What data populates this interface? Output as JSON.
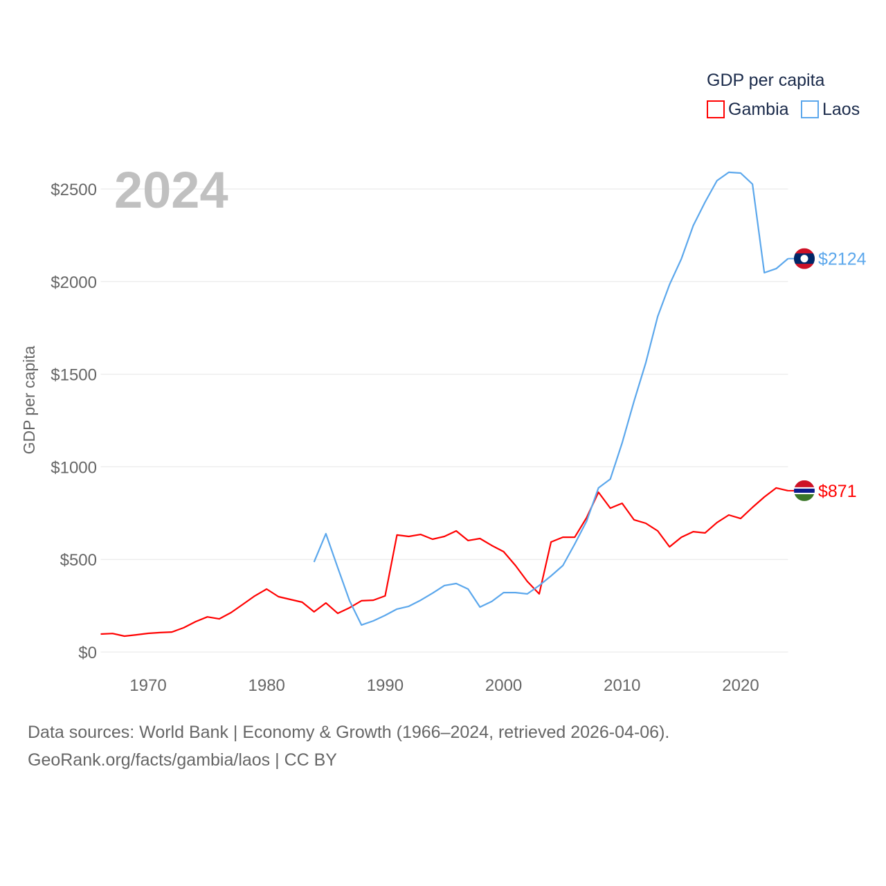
{
  "chart_data": {
    "type": "line",
    "title": "2024",
    "ylabel": "GDP per capita",
    "xlabel": "",
    "xlim": [
      1966,
      2024
    ],
    "ylim": [
      0,
      2600
    ],
    "x_ticks": [
      1970,
      1980,
      1990,
      2000,
      2010,
      2020
    ],
    "y_ticks": [
      0,
      500,
      1000,
      1500,
      2000,
      2500
    ],
    "y_tick_labels": [
      "$0",
      "$500",
      "$1000",
      "$1500",
      "$2000",
      "$2500"
    ],
    "grid": true,
    "legend": {
      "title": "GDP per capita",
      "placement": "top-right"
    },
    "series": [
      {
        "name": "Gambia",
        "color": "#ff0000",
        "end_label": "$871",
        "start_year": 1966,
        "values": [
          97,
          100,
          86,
          93,
          101,
          105,
          108,
          131,
          164,
          190,
          179,
          213,
          258,
          303,
          340,
          299,
          284,
          269,
          217,
          265,
          209,
          239,
          277,
          280,
          303,
          632,
          624,
          635,
          609,
          624,
          654,
          602,
          613,
          575,
          542,
          467,
          381,
          314,
          594,
          620,
          620,
          725,
          863,
          777,
          803,
          714,
          695,
          654,
          568,
          620,
          650,
          643,
          699,
          740,
          721,
          781,
          837,
          886,
          871
        ]
      },
      {
        "name": "Laos",
        "color": "#5ba7ec",
        "end_label": "$2124",
        "start_year": 1984,
        "values": [
          486,
          639,
          456,
          277,
          146,
          168,
          198,
          232,
          247,
          280,
          318,
          359,
          370,
          340,
          243,
          273,
          321,
          321,
          314,
          359,
          411,
          467,
          583,
          706,
          886,
          934,
          1129,
          1353,
          1562,
          1812,
          1984,
          2123,
          2302,
          2429,
          2545,
          2590,
          2586,
          2526,
          2048,
          2070,
          2124
        ]
      }
    ]
  },
  "footer": {
    "line1": "Data sources: World Bank | Economy & Growth (1966–2024, retrieved 2026-04-06).",
    "line2": "GeoRank.org/facts/gambia/laos | CC BY"
  }
}
